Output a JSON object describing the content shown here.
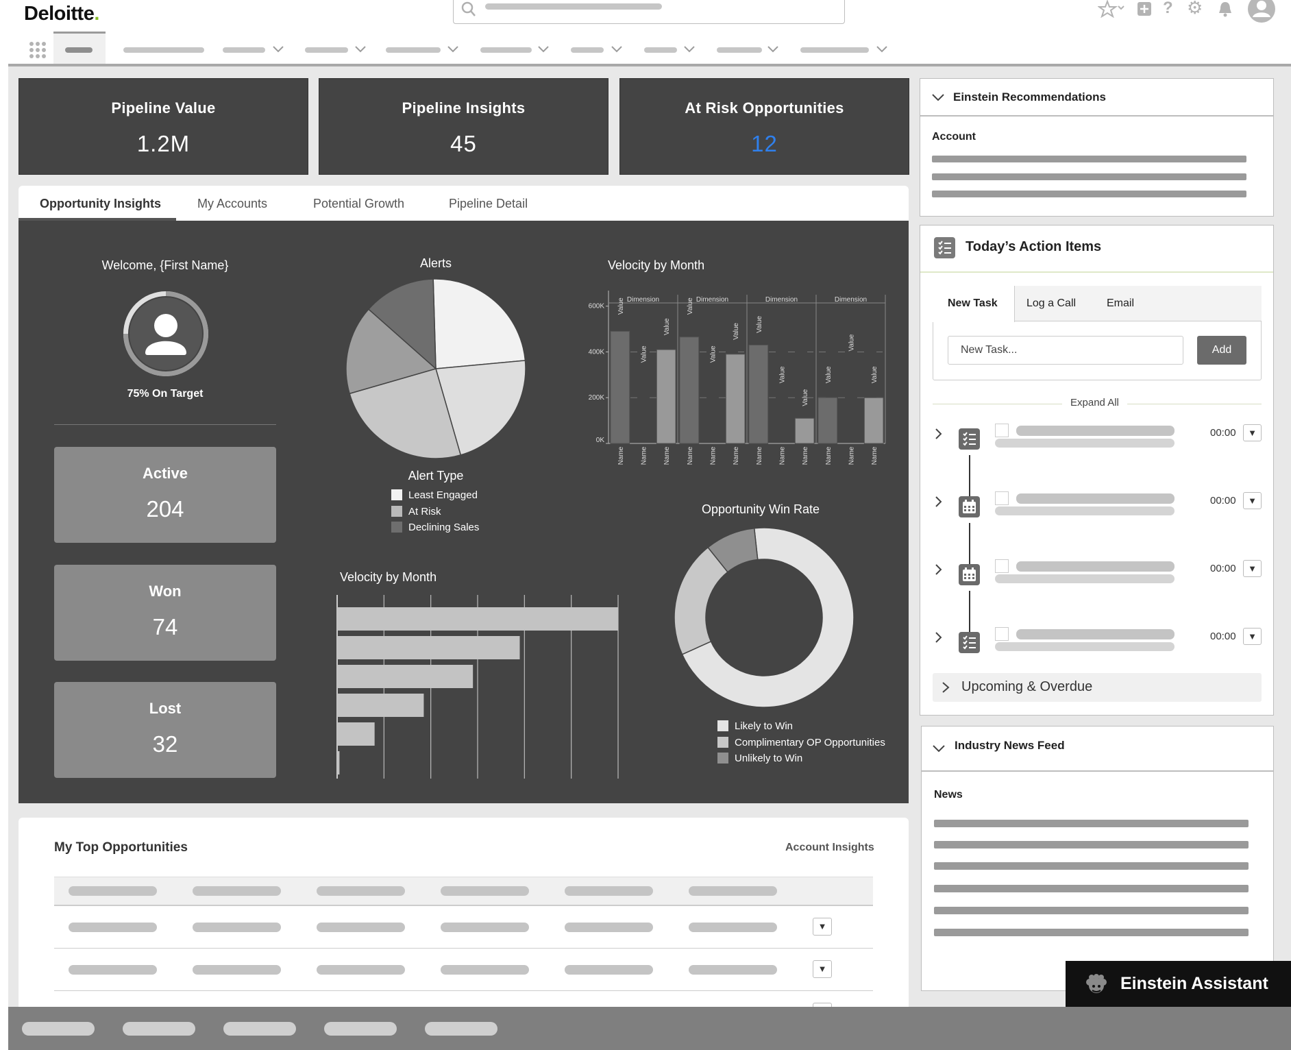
{
  "header": {
    "logo_text": "Deloitte",
    "logo_dot": ".",
    "icons": [
      "star-icon",
      "plus-icon",
      "help-icon",
      "gear-icon",
      "bell-icon",
      "avatar-icon"
    ]
  },
  "kpis": [
    {
      "title": "Pipeline Value",
      "value": "1.2M",
      "color": "#ffffff"
    },
    {
      "title": "Pipeline Insights",
      "value": "45",
      "color": "#ffffff"
    },
    {
      "title": "At Risk Opportunities",
      "value": "12",
      "color": "#2f80ed"
    }
  ],
  "tabs": [
    {
      "label": "Opportunity Insights",
      "active": true
    },
    {
      "label": "My Accounts"
    },
    {
      "label": "Potential Growth"
    },
    {
      "label": "Pipeline Detail"
    }
  ],
  "welcome": {
    "greeting": "Welcome, {First Name}",
    "target": "75% On Target",
    "target_fraction": 0.75
  },
  "stats": [
    {
      "label": "Active",
      "value": "204"
    },
    {
      "label": "Won",
      "value": "74"
    },
    {
      "label": "Lost",
      "value": "32"
    }
  ],
  "chart_data": [
    {
      "type": "pie",
      "title": "Alerts",
      "legend_title": "Alert Type",
      "legend": [
        {
          "name": "Least Engaged",
          "color": "#f2f2f2"
        },
        {
          "name": "At Risk",
          "color": "#b9b9b9"
        },
        {
          "name": "Declining Sales",
          "color": "#6e6e6e"
        }
      ],
      "slices": [
        {
          "value": 24,
          "color": "#f2f2f2"
        },
        {
          "value": 22,
          "color": "#dedede"
        },
        {
          "value": 25,
          "color": "#c7c7c7"
        },
        {
          "value": 16,
          "color": "#9e9e9e"
        },
        {
          "value": 13,
          "color": "#6e6e6e"
        }
      ]
    },
    {
      "type": "bar",
      "title": "Velocity by Month",
      "dimension_label": "Dimension",
      "value_label": "Value",
      "category_label": "Name",
      "y_ticks": [
        "0K",
        "200K",
        "400K",
        "600K"
      ],
      "ylim": [
        0,
        650
      ],
      "values": [
        490,
        0,
        410,
        465,
        0,
        390,
        430,
        0,
        110,
        200,
        0,
        200
      ],
      "value_label_pos": [
        600,
        390,
        510,
        600,
        390,
        490,
        520,
        300,
        200,
        300,
        440,
        300
      ],
      "colors": [
        "#6c6c6c",
        "#999999",
        "#999999",
        "#6c6c6c",
        "#999999",
        "#999999",
        "#6c6c6c",
        "#999999",
        "#999999",
        "#6c6c6c",
        "#999999",
        "#999999"
      ]
    },
    {
      "type": "bar",
      "orientation": "horizontal",
      "title": "Velocity by Month",
      "values": [
        60,
        39,
        29,
        18.5,
        8,
        0.5
      ],
      "xlim": [
        0,
        60
      ]
    },
    {
      "type": "pie",
      "title": "Opportunity Win Rate",
      "legend": [
        {
          "name": "Likely to Win",
          "color": "#e4e4e4"
        },
        {
          "name": "Complimentary OP Opportunities",
          "color": "#c8c8c8"
        },
        {
          "name": "Unlikely to Win",
          "color": "#8f8f8f"
        }
      ],
      "slices": [
        {
          "value": 70,
          "color": "#e4e4e4"
        },
        {
          "value": 21,
          "color": "#c8c8c8"
        },
        {
          "value": 9,
          "color": "#8f8f8f"
        }
      ]
    }
  ],
  "opportunities": {
    "title": "My Top Opportunities",
    "link": "Account Insights"
  },
  "einstein": {
    "title": "Einstein Recommendations",
    "account_label": "Account"
  },
  "actions": {
    "title": "Today’s Action Items",
    "tabs": [
      "New Task",
      "Log a Call",
      "Email"
    ],
    "input_placeholder": "New Task...",
    "add_label": "Add",
    "expand_all": "Expand All",
    "items": [
      {
        "icon": "task-list-icon",
        "time": "00:00"
      },
      {
        "icon": "calendar-icon",
        "time": "00:00"
      },
      {
        "icon": "calendar-icon",
        "time": "00:00"
      },
      {
        "icon": "task-list-icon",
        "time": "00:00"
      }
    ],
    "upcoming": "Upcoming & Overdue"
  },
  "news": {
    "title": "Industry News Feed",
    "label": "News"
  },
  "assistant": {
    "label": "Einstein Assistant"
  }
}
